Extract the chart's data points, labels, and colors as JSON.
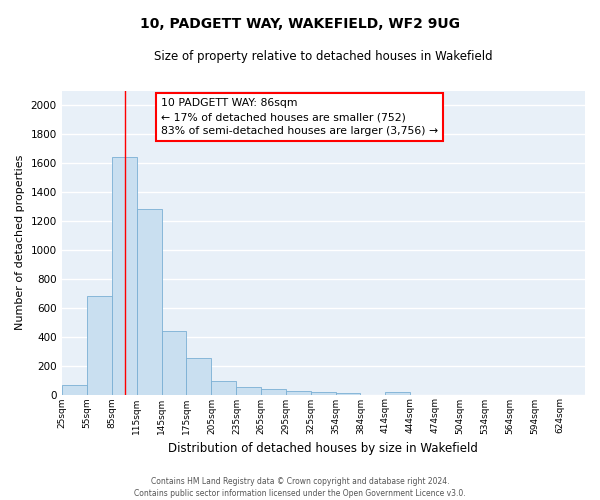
{
  "title": "10, PADGETT WAY, WAKEFIELD, WF2 9UG",
  "subtitle": "Size of property relative to detached houses in Wakefield",
  "xlabel": "Distribution of detached houses by size in Wakefield",
  "ylabel": "Number of detached properties",
  "bar_color": "#c9dff0",
  "bar_edge_color": "#7aafd4",
  "background_color": "#e8f0f8",
  "grid_color": "#ffffff",
  "bin_labels": [
    "25sqm",
    "55sqm",
    "85sqm",
    "115sqm",
    "145sqm",
    "175sqm",
    "205sqm",
    "235sqm",
    "265sqm",
    "295sqm",
    "325sqm",
    "354sqm",
    "384sqm",
    "414sqm",
    "444sqm",
    "474sqm",
    "504sqm",
    "534sqm",
    "564sqm",
    "594sqm",
    "624sqm"
  ],
  "bin_edges": [
    10,
    40,
    70,
    100,
    130,
    160,
    190,
    220,
    250,
    280,
    310,
    340,
    369,
    399,
    429,
    459,
    489,
    519,
    549,
    579,
    609,
    639
  ],
  "bar_heights": [
    65,
    680,
    1640,
    1280,
    440,
    255,
    90,
    50,
    35,
    25,
    20,
    10,
    0,
    15,
    0,
    0,
    0,
    0,
    0,
    0,
    0
  ],
  "ylim": [
    0,
    2100
  ],
  "yticks": [
    0,
    200,
    400,
    600,
    800,
    1000,
    1200,
    1400,
    1600,
    1800,
    2000
  ],
  "property_line_x": 86,
  "annotation_text_line1": "10 PADGETT WAY: 86sqm",
  "annotation_text_line2": "← 17% of detached houses are smaller (752)",
  "annotation_text_line3": "83% of semi-detached houses are larger (3,756) →",
  "footer_line1": "Contains HM Land Registry data © Crown copyright and database right 2024.",
  "footer_line2": "Contains public sector information licensed under the Open Government Licence v3.0."
}
